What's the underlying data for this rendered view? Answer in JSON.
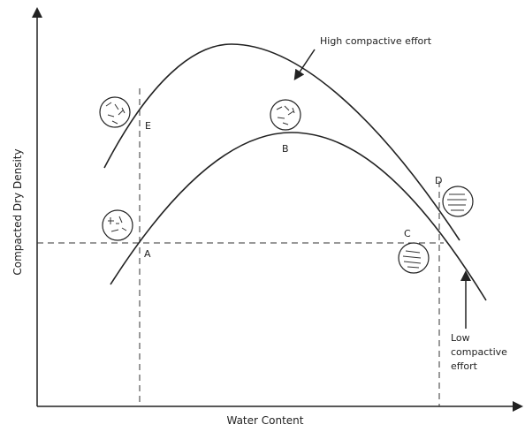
{
  "axes": {
    "x_label": "Water Content",
    "y_label": "Compacted Dry Density"
  },
  "curves": [
    {
      "label": "High compactive effort"
    },
    {
      "label": [
        "Low",
        "compactive",
        "effort"
      ]
    }
  ],
  "points": [
    {
      "label": "A"
    },
    {
      "label": "B"
    },
    {
      "label": "C"
    },
    {
      "label": "D"
    },
    {
      "label": "E"
    }
  ]
}
